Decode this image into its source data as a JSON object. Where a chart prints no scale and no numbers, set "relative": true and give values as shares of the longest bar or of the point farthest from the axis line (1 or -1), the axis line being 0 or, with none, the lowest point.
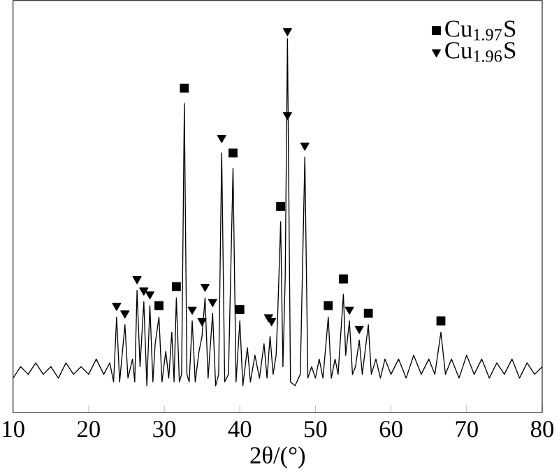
{
  "chart_data": {
    "type": "line",
    "relative": true,
    "xlabel": "2θ/(°)",
    "xlim": [
      10,
      80
    ],
    "xticks": [
      10,
      20,
      30,
      40,
      50,
      60,
      70,
      80
    ],
    "legend": "top right",
    "grid": false,
    "series": [
      {
        "type": "line",
        "color": "#000000",
        "marker": "none",
        "x": [
          10,
          11,
          12,
          13,
          14,
          15,
          16,
          17,
          18,
          19,
          20,
          21,
          22,
          22.8,
          23.3,
          23.7,
          24.1,
          24.8,
          25.2,
          25.8,
          26.1,
          26.4,
          26.8,
          27.3,
          27.7,
          28.1,
          28.5,
          28.8,
          29.3,
          29.7,
          30.2,
          30.6,
          31.0,
          31.3,
          31.6,
          32.0,
          32.3,
          32.66,
          33.0,
          33.3,
          33.7,
          34.1,
          34.6,
          35.0,
          35.4,
          35.8,
          36.4,
          36.8,
          37.2,
          37.6,
          38.0,
          38.5,
          39.1,
          39.5,
          40.0,
          40.4,
          41.0,
          41.4,
          42.0,
          42.6,
          43.2,
          43.6,
          44.0,
          44.4,
          44.8,
          45.0,
          45.4,
          45.7,
          46.0,
          46.3,
          46.7,
          47.3,
          48.0,
          48.6,
          49.0,
          49.5,
          50.0,
          50.5,
          51.0,
          51.7,
          52.1,
          52.6,
          53.0,
          53.7,
          54.0,
          54.5,
          54.9,
          55.3,
          55.8,
          56.2,
          57.0,
          57.4,
          58.0,
          58.6,
          59.2,
          60.0,
          61,
          62,
          63,
          64,
          65,
          65.8,
          66.6,
          67.2,
          68,
          69,
          70,
          71,
          72,
          73,
          74,
          75,
          76,
          77,
          78,
          79,
          80
        ],
        "values": [
          0.09,
          0.12,
          0.1,
          0.13,
          0.1,
          0.12,
          0.09,
          0.13,
          0.1,
          0.12,
          0.1,
          0.14,
          0.1,
          0.13,
          0.08,
          0.25,
          0.08,
          0.23,
          0.09,
          0.14,
          0.08,
          0.32,
          0.12,
          0.29,
          0.07,
          0.28,
          0.08,
          0.18,
          0.25,
          0.08,
          0.16,
          0.09,
          0.21,
          0.08,
          0.3,
          0.08,
          0.1,
          0.81,
          0.1,
          0.08,
          0.24,
          0.08,
          0.16,
          0.2,
          0.3,
          0.09,
          0.26,
          0.07,
          0.1,
          0.68,
          0.08,
          0.1,
          0.64,
          0.08,
          0.24,
          0.07,
          0.17,
          0.08,
          0.15,
          0.09,
          0.18,
          0.09,
          0.2,
          0.1,
          0.15,
          0.25,
          0.5,
          0.12,
          0.35,
          0.98,
          0.08,
          0.07,
          0.1,
          0.67,
          0.09,
          0.12,
          0.09,
          0.14,
          0.09,
          0.25,
          0.09,
          0.14,
          0.1,
          0.31,
          0.15,
          0.24,
          0.1,
          0.12,
          0.19,
          0.1,
          0.23,
          0.1,
          0.14,
          0.09,
          0.14,
          0.1,
          0.14,
          0.09,
          0.15,
          0.1,
          0.14,
          0.1,
          0.21,
          0.1,
          0.14,
          0.09,
          0.15,
          0.1,
          0.14,
          0.09,
          0.13,
          0.1,
          0.14,
          0.09,
          0.13,
          0.1,
          0.12
        ]
      },
      {
        "type": "scatter",
        "name": "Cu$_{1.97}$S",
        "color": "#000000",
        "marker": "square",
        "x": [
          29.3,
          31.6,
          32.66,
          39.1,
          40.0,
          45.4,
          51.7,
          53.7,
          57.0,
          66.6
        ],
        "values": [
          0.28,
          0.33,
          0.85,
          0.68,
          0.27,
          0.54,
          0.28,
          0.35,
          0.26,
          0.24
        ]
      },
      {
        "type": "scatter",
        "name": "Cu$_{1.96}$S",
        "color": "#000000",
        "marker": "triangle",
        "x": [
          23.7,
          24.8,
          26.4,
          27.3,
          28.1,
          33.7,
          35.0,
          35.4,
          36.4,
          37.6,
          43.8,
          44.2,
          46.3,
          46.3,
          48.6,
          54.5,
          55.8
        ],
        "values": [
          0.28,
          0.26,
          0.35,
          0.32,
          0.31,
          0.27,
          0.24,
          0.33,
          0.29,
          0.72,
          0.25,
          0.24,
          1.0,
          0.78,
          0.7,
          0.27,
          0.22
        ]
      }
    ]
  }
}
